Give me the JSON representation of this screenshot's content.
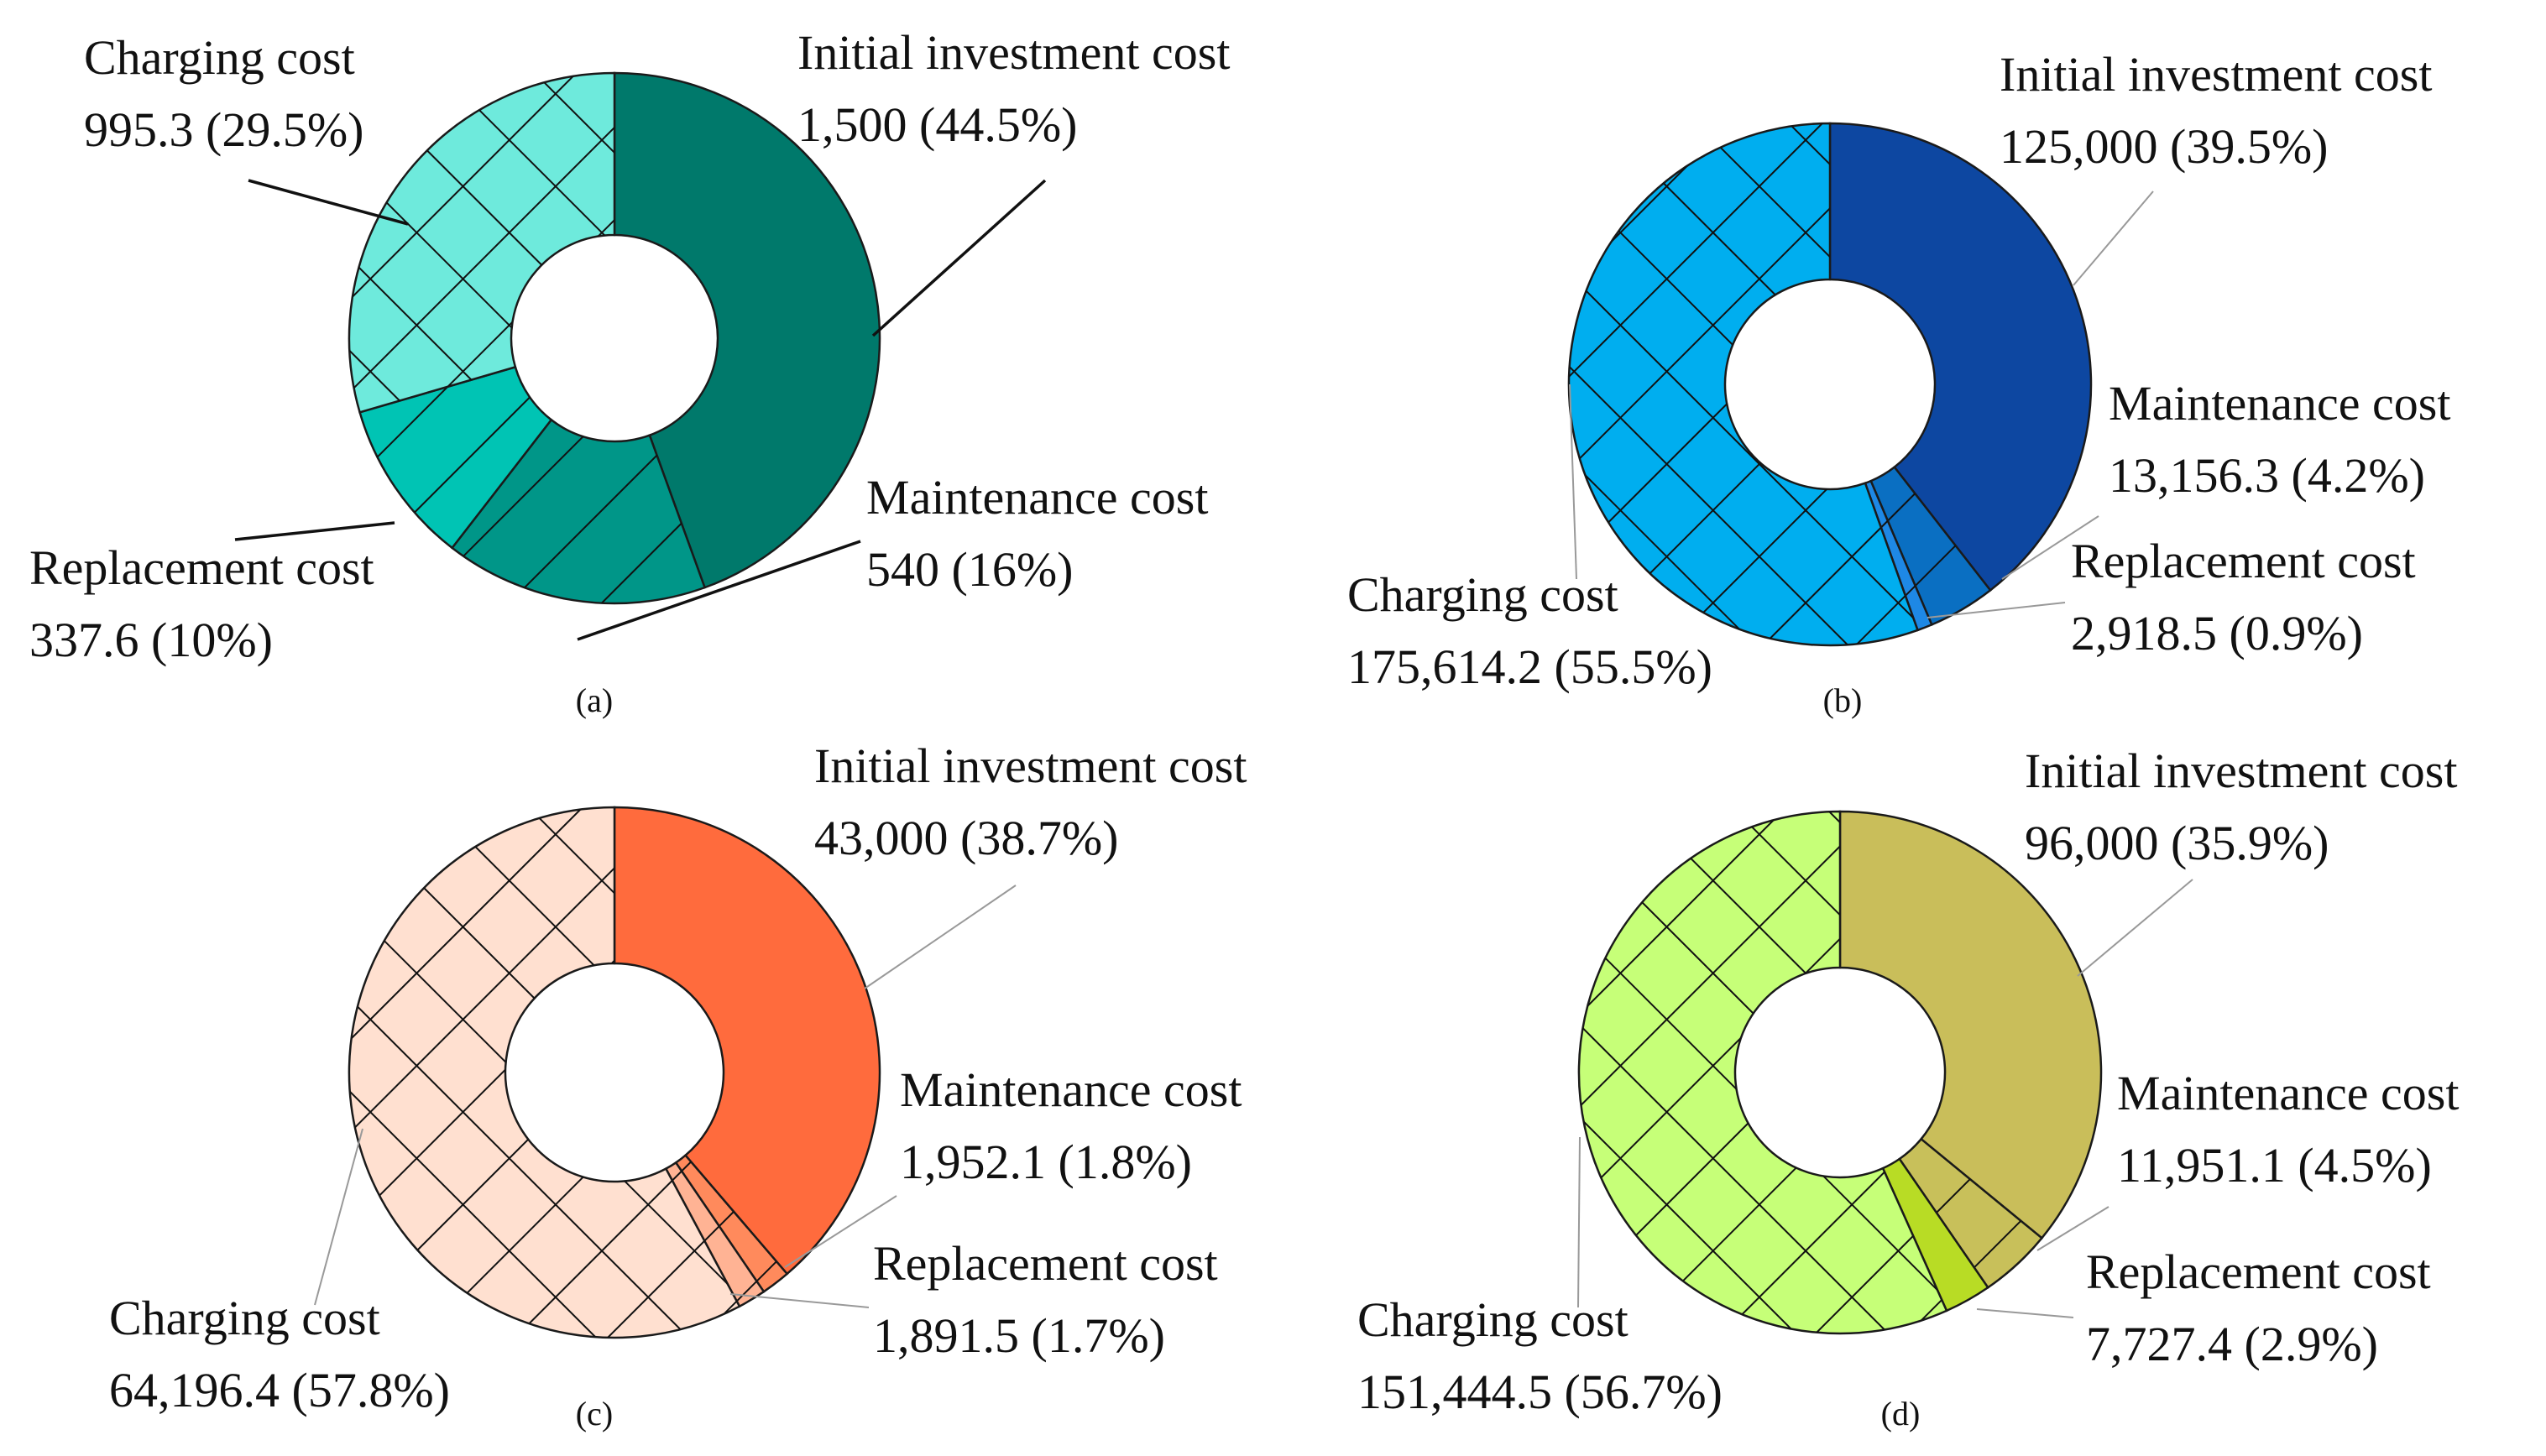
{
  "chart_data": [
    {
      "type": "pie",
      "caption": "(a)",
      "slices": [
        {
          "name": "Initial investment cost",
          "value": 1500,
          "value_label": "1,500",
          "percent_label": "44.5%",
          "color": "#00796B",
          "hatch": "none"
        },
        {
          "name": "Maintenance cost",
          "value": 540,
          "value_label": "540",
          "percent_label": "16%",
          "color": "#009688",
          "hatch": "diag"
        },
        {
          "name": "Replacement cost",
          "value": 337.6,
          "value_label": "337.6",
          "percent_label": "10%",
          "color": "#00C4B4",
          "hatch": "diag"
        },
        {
          "name": "Charging cost",
          "value": 995.3,
          "value_label": "995.3",
          "percent_label": "29.5%",
          "color": "#6EEADC",
          "hatch": "cross"
        }
      ]
    },
    {
      "type": "pie",
      "caption": "(b)",
      "slices": [
        {
          "name": "Initial investment cost",
          "value": 125000,
          "value_label": "125,000",
          "percent_label": "39.5%",
          "color": "#0D47A1",
          "hatch": "none"
        },
        {
          "name": "Maintenance cost",
          "value": 13156.3,
          "value_label": "13,156.3",
          "percent_label": "4.2%",
          "color": "#0A6FC2",
          "hatch": "diag"
        },
        {
          "name": "Replacement cost",
          "value": 2918.5,
          "value_label": "2,918.5",
          "percent_label": "0.9%",
          "color": "#1E88E5",
          "hatch": "diag"
        },
        {
          "name": "Charging cost",
          "value": 175614.2,
          "value_label": "175,614.2",
          "percent_label": "55.5%",
          "color": "#00AEEF",
          "hatch": "cross"
        }
      ]
    },
    {
      "type": "pie",
      "caption": "(c)",
      "slices": [
        {
          "name": "Initial investment cost",
          "value": 43000,
          "value_label": "43,000",
          "percent_label": "38.7%",
          "color": "#FF6B3D",
          "hatch": "none"
        },
        {
          "name": "Maintenance cost",
          "value": 1952.1,
          "value_label": "1,952.1",
          "percent_label": "1.8%",
          "color": "#FF8A5C",
          "hatch": "diag"
        },
        {
          "name": "Replacement cost",
          "value": 1891.5,
          "value_label": "1,891.5",
          "percent_label": "1.7%",
          "color": "#FFB394",
          "hatch": "diag"
        },
        {
          "name": "Charging cost",
          "value": 64196.4,
          "value_label": "64,196.4",
          "percent_label": "57.8%",
          "color": "#FFE0D0",
          "hatch": "cross"
        }
      ]
    },
    {
      "type": "pie",
      "caption": "(d)",
      "slices": [
        {
          "name": "Initial investment cost",
          "value": 96000,
          "value_label": "96,000",
          "percent_label": "35.9%",
          "color": "#C9BE5A",
          "hatch": "none"
        },
        {
          "name": "Maintenance cost",
          "value": 11951.1,
          "value_label": "11,951.1",
          "percent_label": "4.5%",
          "color": "#C8C05A",
          "hatch": "diag"
        },
        {
          "name": "Replacement cost",
          "value": 7727.4,
          "value_label": "7,727.4",
          "percent_label": "2.9%",
          "color": "#B8DC25",
          "hatch": "none"
        },
        {
          "name": "Charging cost",
          "value": 151444.5,
          "value_label": "151,444.5",
          "percent_label": "56.7%",
          "color": "#C6FF78",
          "hatch": "cross"
        }
      ]
    }
  ]
}
